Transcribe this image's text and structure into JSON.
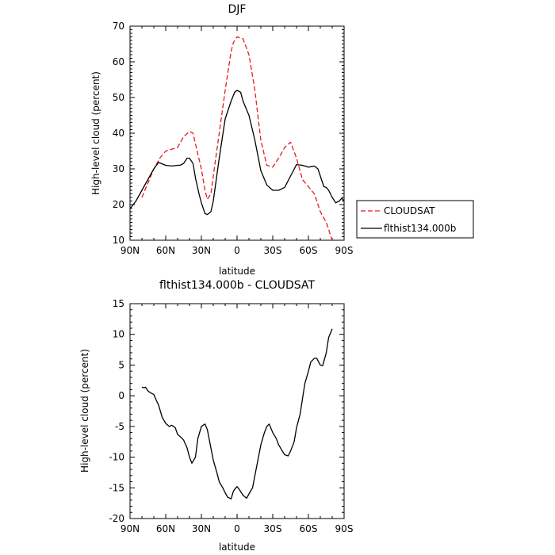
{
  "chart_data": [
    {
      "type": "line",
      "title": "DJF",
      "xlabel": "latitude",
      "ylabel": "High-level cloud (percent)",
      "x_ticks": [
        "90N",
        "60N",
        "30N",
        "0",
        "30S",
        "60S",
        "90S"
      ],
      "xlim": [
        90,
        -90
      ],
      "ylim": [
        10,
        70
      ],
      "y_ticks": [
        10,
        20,
        30,
        40,
        50,
        60,
        70
      ],
      "series": [
        {
          "name": "CLOUDSAT",
          "color": "#e8191e",
          "dash": true,
          "x": [
            80,
            75,
            70,
            65,
            60,
            55,
            50,
            45,
            40,
            37,
            35,
            30,
            27,
            25,
            22,
            20,
            15,
            10,
            5,
            3,
            0,
            -5,
            -10,
            -15,
            -20,
            -25,
            -30,
            -35,
            -40,
            -45,
            -50,
            -55,
            -60,
            -65,
            -70,
            -75,
            -80
          ],
          "values": [
            22,
            26,
            30,
            33,
            35,
            35.5,
            36,
            39,
            40.5,
            40,
            37,
            30,
            24,
            21.5,
            23,
            28,
            40,
            52,
            63,
            65.5,
            67,
            66.5,
            62,
            52,
            38,
            31,
            30.5,
            33,
            36,
            37.5,
            33,
            27,
            25,
            23,
            18,
            15,
            10
          ]
        },
        {
          "name": "flthist134.000b",
          "color": "#000000",
          "dash": false,
          "x": [
            90,
            85,
            80,
            75,
            70,
            66,
            60,
            55,
            50,
            48,
            45,
            42,
            40,
            37,
            35,
            32,
            30,
            27,
            25,
            22,
            20,
            15,
            10,
            5,
            2,
            0,
            -3,
            -5,
            -10,
            -15,
            -20,
            -25,
            -30,
            -35,
            -40,
            -45,
            -50,
            -55,
            -60,
            -65,
            -68,
            -70,
            -73,
            -75,
            -77,
            -80,
            -83,
            -86,
            -88,
            -90
          ],
          "values": [
            18.8,
            21,
            24,
            27,
            30,
            31.8,
            31,
            30.8,
            31,
            31,
            31.5,
            33,
            33,
            31.5,
            27.5,
            23,
            20.5,
            17.5,
            17.2,
            18,
            21,
            33,
            44,
            49,
            51.5,
            52,
            51.5,
            49,
            45,
            38,
            29.5,
            25.5,
            24,
            24,
            24.8,
            28,
            31.2,
            31,
            30.5,
            30.8,
            30,
            28,
            25,
            24.8,
            24,
            22,
            20.5,
            21,
            21.8,
            21
          ]
        }
      ],
      "legend": "right"
    },
    {
      "type": "line",
      "title": "flthist134.000b - CLOUDSAT",
      "xlabel": "latitude",
      "ylabel": "High-level cloud (percent)",
      "x_ticks": [
        "90N",
        "60N",
        "30N",
        "0",
        "30S",
        "60S",
        "90S"
      ],
      "xlim": [
        90,
        -90
      ],
      "ylim": [
        -20,
        15
      ],
      "y_ticks": [
        -20,
        -15,
        -10,
        -5,
        0,
        5,
        10,
        15
      ],
      "series": [
        {
          "color": "#000000",
          "dash": false,
          "x": [
            80,
            78,
            77,
            75,
            73,
            70,
            68,
            66,
            63,
            60,
            57,
            55,
            52,
            50,
            47,
            45,
            42,
            40,
            38,
            35,
            33,
            30,
            27,
            25,
            23,
            20,
            17,
            15,
            12,
            10,
            8,
            5,
            3,
            1,
            0,
            -2,
            -5,
            -8,
            -10,
            -13,
            -15,
            -18,
            -20,
            -23,
            -25,
            -27,
            -30,
            -33,
            -35,
            -38,
            -40,
            -43,
            -45,
            -48,
            -50,
            -53,
            -55,
            -57,
            -60,
            -62,
            -65,
            -67,
            -70,
            -72,
            -75,
            -77,
            -80
          ],
          "values": [
            1.4,
            1.3,
            1.4,
            0.8,
            0.5,
            0.2,
            -0.7,
            -1.5,
            -3.5,
            -4.5,
            -5,
            -4.8,
            -5.2,
            -6.3,
            -6.8,
            -7.2,
            -8.5,
            -10,
            -11,
            -10,
            -7,
            -5,
            -4.6,
            -5.5,
            -7.5,
            -10.5,
            -12.5,
            -14,
            -15,
            -15.8,
            -16.5,
            -16.8,
            -15.5,
            -15,
            -14.8,
            -15.3,
            -16.2,
            -16.7,
            -16,
            -15,
            -13,
            -10,
            -8,
            -6,
            -5,
            -4.6,
            -6,
            -7,
            -8,
            -9,
            -9.6,
            -9.8,
            -9,
            -7.5,
            -5.2,
            -3,
            -0.5,
            2,
            4,
            5.5,
            6.1,
            6.1,
            5,
            4.9,
            7,
            9.5,
            10.9
          ]
        }
      ]
    }
  ]
}
